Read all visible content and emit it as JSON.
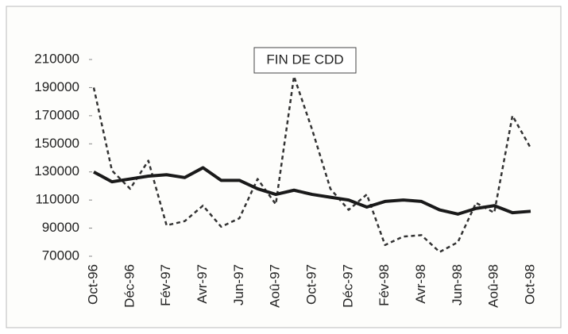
{
  "chart_data": {
    "type": "line",
    "title": "FIN DE CDD",
    "categories": [
      "Oct-96",
      null,
      "Déc-96",
      null,
      "Fév-97",
      null,
      "Avr-97",
      null,
      "Jun-97",
      null,
      "Aoû-97",
      null,
      "Oct-97",
      null,
      "Déc-97",
      null,
      "Fév-98",
      null,
      "Avr-98",
      null,
      "Jun-98",
      null,
      "Aoû-98",
      null,
      "Oct-98"
    ],
    "series": [
      {
        "color": "#333333",
        "dashed": true,
        "width": 2.5,
        "values": [
          190000,
          131000,
          118000,
          138000,
          92000,
          95000,
          106000,
          91000,
          97000,
          125000,
          107000,
          198000,
          160000,
          118000,
          103000,
          114000,
          78000,
          84000,
          85000,
          73000,
          80000,
          108000,
          101000,
          170000,
          147000
        ]
      },
      {
        "color": "#1a1a1a",
        "dashed": false,
        "width": 4,
        "values": [
          130000,
          123000,
          125000,
          127000,
          128000,
          126000,
          133000,
          124000,
          124000,
          118000,
          114000,
          117000,
          114000,
          112000,
          110000,
          105000,
          109000,
          110000,
          109000,
          103000,
          100000,
          104000,
          106000,
          101000,
          102000
        ]
      }
    ],
    "ylim": [
      70000,
      210000
    ],
    "yticks": [
      70000,
      90000,
      110000,
      130000,
      150000,
      170000,
      190000,
      210000
    ],
    "grid": false
  }
}
